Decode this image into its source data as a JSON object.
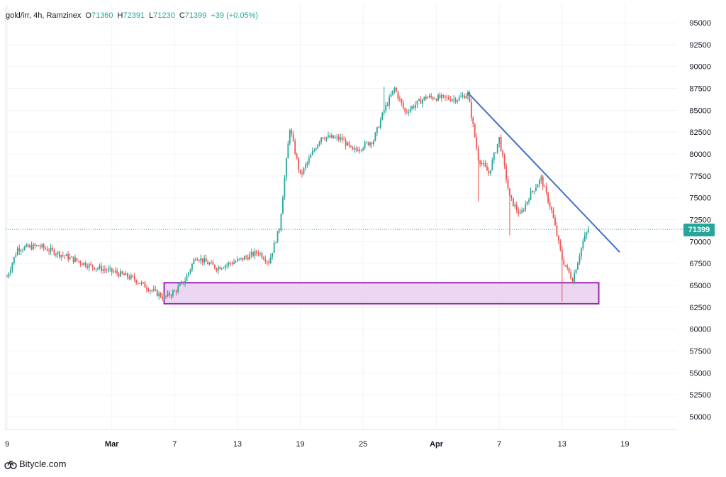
{
  "legend": {
    "symbol": "gold/irr, 4h, Ramzinex",
    "open_label": "O",
    "open": "71360",
    "high_label": "H",
    "high": "72391",
    "low_label": "L",
    "low": "71230",
    "close_label": "C",
    "close": "71399",
    "change": "+39 (+0.05%)"
  },
  "price_badge": "71399",
  "brand": {
    "name": "Bitycle.com",
    "icon": "bitycle-logo-icon"
  },
  "colors": {
    "up": "#26a69a",
    "down": "#ef5350",
    "trendline": "#4472c4",
    "zone_fill": "#e8d0ee",
    "zone_border": "#9c27b0",
    "last_price_line": "#26a69a"
  },
  "chart_data": {
    "type": "candlestick",
    "title": "",
    "xlabel": "",
    "ylabel": "",
    "x_tick_labels": [
      "9",
      "Mar",
      "7",
      "13",
      "19",
      "25",
      "Apr",
      "7",
      "13",
      "19"
    ],
    "y_tick_labels": [
      "95000",
      "92500",
      "90000",
      "87500",
      "85000",
      "82500",
      "80000",
      "77500",
      "75000",
      "72500",
      "70000",
      "67500",
      "65000",
      "62500",
      "60000",
      "57500",
      "55000",
      "52500",
      "50000"
    ],
    "ylim": [
      48000,
      96500
    ],
    "grid": true,
    "last_price": 71399,
    "price_path": [
      {
        "date": "Feb 19",
        "price": 66000
      },
      {
        "date": "Feb 20",
        "price": 69200
      },
      {
        "date": "Feb 22",
        "price": 69500
      },
      {
        "date": "Feb 24",
        "price": 68600
      },
      {
        "date": "Feb 27",
        "price": 67200
      },
      {
        "date": "Mar 1",
        "price": 66600
      },
      {
        "date": "Mar 3",
        "price": 65800
      },
      {
        "date": "Mar 5",
        "price": 64300
      },
      {
        "date": "Mar 6",
        "price": 63600
      },
      {
        "date": "Mar 7",
        "price": 64300
      },
      {
        "date": "Mar 8",
        "price": 65600
      },
      {
        "date": "Mar 9",
        "price": 68300
      },
      {
        "date": "Mar 11",
        "price": 67000
      },
      {
        "date": "Mar 13",
        "price": 67800
      },
      {
        "date": "Mar 15",
        "price": 68800
      },
      {
        "date": "Mar 16",
        "price": 67700
      },
      {
        "date": "Mar 17",
        "price": 71500
      },
      {
        "date": "Mar 18",
        "price": 83000
      },
      {
        "date": "Mar 19",
        "price": 77500
      },
      {
        "date": "Mar 21",
        "price": 82000
      },
      {
        "date": "Mar 23",
        "price": 81700
      },
      {
        "date": "Mar 24",
        "price": 80300
      },
      {
        "date": "Mar 26",
        "price": 81600
      },
      {
        "date": "Mar 27",
        "price": 85000
      },
      {
        "date": "Mar 28",
        "price": 87500
      },
      {
        "date": "Mar 29",
        "price": 84800
      },
      {
        "date": "Mar 31",
        "price": 86500
      },
      {
        "date": "Apr 3",
        "price": 86300
      },
      {
        "date": "Apr 4",
        "price": 86900
      },
      {
        "date": "Apr 5",
        "price": 79500
      },
      {
        "date": "Apr 6",
        "price": 77800
      },
      {
        "date": "Apr 7",
        "price": 81800
      },
      {
        "date": "Apr 8",
        "price": 75000
      },
      {
        "date": "Apr 9",
        "price": 73000
      },
      {
        "date": "Apr 10",
        "price": 75500
      },
      {
        "date": "Apr 11",
        "price": 77200
      },
      {
        "date": "Apr 12",
        "price": 73500
      },
      {
        "date": "Apr 13",
        "price": 68000
      },
      {
        "date": "Apr 14",
        "price": 65600
      },
      {
        "date": "Apr 15",
        "price": 70000
      },
      {
        "date": "Apr 15.5",
        "price": 71399
      }
    ],
    "trendline": {
      "start": {
        "date": "Apr 4",
        "price": 87000
      },
      "end": {
        "date": "Apr 18.5",
        "price": 68800
      }
    },
    "support_zone": {
      "start_date": "Mar 6",
      "end_date": "Apr 16.5",
      "low": 62900,
      "high": 65300
    }
  }
}
